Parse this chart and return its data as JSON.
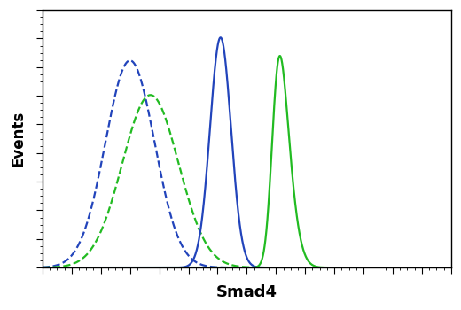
{
  "title": "",
  "xlabel": "Smad4",
  "ylabel": "Events",
  "xlabel_fontsize": 13,
  "ylabel_fontsize": 12,
  "background_color": "#ffffff",
  "curves": [
    {
      "label": "blue_dashed",
      "color": "#2244bb",
      "linestyle": "--",
      "linewidth": 1.6,
      "mu": 3.0,
      "sigma": 0.42,
      "amplitude": 0.9,
      "skew": 0
    },
    {
      "label": "green_dashed",
      "color": "#22bb22",
      "linestyle": "--",
      "linewidth": 1.6,
      "mu": 3.35,
      "sigma": 0.48,
      "amplitude": 0.75,
      "skew": 0
    },
    {
      "label": "blue_solid",
      "color": "#2244bb",
      "linestyle": "-",
      "linewidth": 1.6,
      "mu": 4.55,
      "sigma": 0.18,
      "amplitude": 1.0,
      "skew": 0
    },
    {
      "label": "green_solid",
      "color": "#22bb22",
      "linestyle": "-",
      "linewidth": 1.6,
      "mu": 5.45,
      "sigma": 0.22,
      "amplitude": 0.92,
      "skew": 2
    }
  ],
  "xlim": [
    1.5,
    8.5
  ],
  "ylim": [
    0,
    1.12
  ],
  "tick_color": "#000000",
  "spine_color": "#000000",
  "figsize": [
    5.2,
    3.5
  ],
  "dpi": 100
}
